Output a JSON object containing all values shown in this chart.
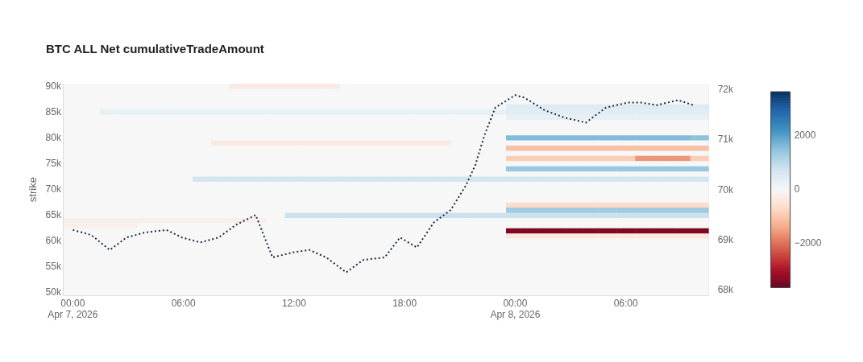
{
  "chart_data": {
    "type": "heatmap",
    "title": "BTC ALL Net cumulativeTradeAmount",
    "ylabel": "strike",
    "x": [
      "2026-04-07T00:00",
      "2026-04-07T01:00",
      "2026-04-07T02:00",
      "2026-04-07T03:00",
      "2026-04-07T04:00",
      "2026-04-07T05:00",
      "2026-04-07T06:00",
      "2026-04-07T07:00",
      "2026-04-07T08:00",
      "2026-04-07T09:00",
      "2026-04-07T10:00",
      "2026-04-07T11:00",
      "2026-04-07T12:00",
      "2026-04-07T13:00",
      "2026-04-07T14:00",
      "2026-04-07T15:00",
      "2026-04-07T16:00",
      "2026-04-07T17:00",
      "2026-04-07T18:00",
      "2026-04-07T19:00",
      "2026-04-07T20:00",
      "2026-04-07T21:00",
      "2026-04-07T22:00",
      "2026-04-07T23:00",
      "2026-04-08T00:00",
      "2026-04-08T01:00",
      "2026-04-08T02:00",
      "2026-04-08T03:00",
      "2026-04-08T04:00",
      "2026-04-08T05:00",
      "2026-04-08T06:00",
      "2026-04-08T07:00",
      "2026-04-08T08:00",
      "2026-04-08T09:00",
      "2026-04-08T10:00"
    ],
    "y": [
      90000,
      89000,
      88000,
      87000,
      86000,
      85000,
      84000,
      83000,
      82000,
      81000,
      80000,
      79000,
      78000,
      77000,
      76000,
      75000,
      74000,
      73000,
      72000,
      71000,
      70000,
      69000,
      68000,
      67000,
      66000,
      65000,
      64000,
      63000,
      62000,
      61000,
      60000,
      59000,
      58000,
      57000,
      56000,
      55000,
      54000,
      53000,
      52000,
      51000,
      50000
    ],
    "cells": [
      [
        0,
        0,
        0,
        0,
        0,
        0,
        0,
        0,
        0,
        -300,
        -300,
        -300,
        -300,
        -300,
        -300,
        0,
        0,
        0,
        0,
        0,
        0,
        0,
        0,
        0,
        0,
        0,
        0,
        0,
        0,
        0,
        0,
        0,
        0,
        0,
        0
      ],
      [
        0,
        0,
        0,
        0,
        0,
        0,
        0,
        0,
        0,
        0,
        0,
        0,
        0,
        0,
        0,
        0,
        0,
        0,
        0,
        0,
        0,
        0,
        0,
        0,
        0,
        0,
        0,
        0,
        0,
        0,
        0,
        0,
        0,
        0,
        0
      ],
      [
        0,
        0,
        0,
        0,
        0,
        0,
        0,
        0,
        0,
        0,
        0,
        0,
        0,
        0,
        0,
        0,
        0,
        0,
        0,
        0,
        0,
        0,
        0,
        0,
        0,
        0,
        0,
        0,
        0,
        0,
        0,
        0,
        0,
        0,
        0
      ],
      [
        0,
        0,
        0,
        0,
        0,
        0,
        0,
        0,
        0,
        0,
        0,
        0,
        0,
        0,
        0,
        0,
        0,
        0,
        0,
        0,
        0,
        0,
        0,
        0,
        0,
        0,
        0,
        0,
        0,
        0,
        0,
        0,
        0,
        0,
        0
      ],
      [
        0,
        0,
        0,
        0,
        0,
        0,
        0,
        0,
        0,
        0,
        0,
        0,
        0,
        0,
        0,
        0,
        0,
        0,
        0,
        0,
        0,
        0,
        0,
        0,
        500,
        500,
        500,
        500,
        500,
        500,
        500,
        500,
        500,
        500,
        500
      ],
      [
        0,
        0,
        300,
        300,
        300,
        300,
        300,
        300,
        300,
        300,
        300,
        300,
        300,
        300,
        300,
        300,
        300,
        300,
        300,
        300,
        300,
        300,
        300,
        300,
        400,
        400,
        400,
        400,
        400,
        400,
        400,
        400,
        400,
        400,
        400
      ],
      [
        0,
        0,
        0,
        0,
        0,
        0,
        0,
        0,
        0,
        0,
        0,
        0,
        0,
        0,
        0,
        0,
        0,
        0,
        0,
        0,
        0,
        0,
        0,
        0,
        300,
        300,
        300,
        300,
        300,
        300,
        300,
        300,
        300,
        300,
        300
      ],
      [
        0,
        0,
        0,
        0,
        0,
        0,
        0,
        0,
        0,
        0,
        0,
        0,
        0,
        0,
        0,
        0,
        0,
        0,
        0,
        0,
        0,
        0,
        0,
        0,
        0,
        0,
        0,
        0,
        0,
        0,
        0,
        0,
        0,
        0,
        0
      ],
      [
        0,
        0,
        0,
        0,
        0,
        0,
        0,
        0,
        0,
        0,
        0,
        0,
        0,
        0,
        0,
        0,
        0,
        0,
        0,
        0,
        0,
        0,
        0,
        0,
        0,
        0,
        0,
        0,
        0,
        0,
        0,
        0,
        0,
        0,
        0
      ],
      [
        0,
        0,
        0,
        0,
        0,
        0,
        0,
        0,
        0,
        0,
        0,
        0,
        0,
        0,
        0,
        0,
        0,
        0,
        0,
        0,
        0,
        0,
        0,
        0,
        0,
        0,
        0,
        0,
        0,
        0,
        0,
        0,
        0,
        0,
        0
      ],
      [
        0,
        0,
        0,
        0,
        0,
        0,
        0,
        0,
        0,
        0,
        0,
        0,
        0,
        0,
        0,
        0,
        0,
        0,
        0,
        0,
        0,
        0,
        0,
        0,
        1600,
        1600,
        1600,
        1600,
        1600,
        1600,
        1600,
        1600,
        1600,
        1600,
        1500
      ],
      [
        0,
        0,
        0,
        0,
        0,
        0,
        0,
        0,
        -300,
        -300,
        -300,
        -300,
        -300,
        -300,
        -300,
        -300,
        -300,
        -300,
        -300,
        -300,
        -300,
        0,
        0,
        0,
        0,
        0,
        0,
        0,
        0,
        0,
        0,
        0,
        0,
        0,
        0
      ],
      [
        0,
        0,
        0,
        0,
        0,
        0,
        0,
        0,
        0,
        0,
        0,
        0,
        0,
        0,
        0,
        0,
        0,
        0,
        0,
        0,
        0,
        0,
        0,
        0,
        -1100,
        -1100,
        -1100,
        -1100,
        -1100,
        -1100,
        -1100,
        -1100,
        -1100,
        -1100,
        -1100
      ],
      [
        0,
        0,
        0,
        0,
        0,
        0,
        0,
        0,
        0,
        0,
        0,
        0,
        0,
        0,
        0,
        0,
        0,
        0,
        0,
        0,
        0,
        0,
        0,
        0,
        0,
        0,
        0,
        0,
        0,
        0,
        0,
        0,
        0,
        0,
        0
      ],
      [
        0,
        0,
        0,
        0,
        0,
        0,
        0,
        0,
        0,
        0,
        0,
        0,
        0,
        0,
        0,
        0,
        0,
        0,
        0,
        0,
        0,
        0,
        0,
        0,
        -900,
        -900,
        -900,
        -900,
        -900,
        -900,
        -900,
        -1600,
        -1600,
        -1600,
        -900
      ],
      [
        0,
        0,
        0,
        0,
        0,
        0,
        0,
        0,
        0,
        0,
        0,
        0,
        0,
        0,
        0,
        0,
        0,
        0,
        0,
        0,
        0,
        0,
        0,
        0,
        0,
        0,
        0,
        0,
        0,
        0,
        0,
        0,
        0,
        0,
        0
      ],
      [
        0,
        0,
        0,
        0,
        0,
        0,
        0,
        0,
        0,
        0,
        0,
        0,
        0,
        0,
        0,
        0,
        0,
        0,
        0,
        0,
        0,
        0,
        0,
        0,
        1400,
        1400,
        1400,
        1400,
        1400,
        1400,
        1400,
        1400,
        1400,
        1400,
        1400
      ],
      [
        0,
        0,
        0,
        0,
        0,
        0,
        0,
        0,
        0,
        0,
        0,
        0,
        0,
        0,
        0,
        0,
        0,
        0,
        0,
        0,
        0,
        0,
        0,
        0,
        0,
        0,
        0,
        0,
        0,
        0,
        0,
        0,
        0,
        0,
        0
      ],
      [
        0,
        0,
        0,
        0,
        0,
        0,
        0,
        700,
        700,
        700,
        700,
        700,
        700,
        700,
        700,
        700,
        700,
        700,
        700,
        700,
        700,
        700,
        700,
        700,
        700,
        700,
        700,
        700,
        700,
        700,
        700,
        700,
        700,
        700,
        700
      ],
      [
        0,
        0,
        0,
        0,
        0,
        0,
        0,
        0,
        0,
        0,
        0,
        0,
        0,
        0,
        0,
        0,
        0,
        0,
        0,
        0,
        0,
        0,
        0,
        0,
        0,
        0,
        0,
        0,
        0,
        0,
        0,
        0,
        0,
        0,
        0
      ],
      [
        0,
        0,
        0,
        0,
        0,
        0,
        0,
        0,
        0,
        0,
        0,
        0,
        0,
        0,
        0,
        0,
        0,
        0,
        0,
        0,
        0,
        0,
        0,
        0,
        0,
        0,
        0,
        0,
        0,
        0,
        0,
        0,
        0,
        0,
        0
      ],
      [
        0,
        0,
        0,
        0,
        0,
        0,
        0,
        0,
        0,
        0,
        0,
        0,
        0,
        0,
        0,
        0,
        0,
        0,
        0,
        0,
        0,
        0,
        0,
        0,
        0,
        0,
        0,
        0,
        0,
        0,
        0,
        0,
        0,
        0,
        0
      ],
      [
        0,
        0,
        0,
        0,
        0,
        0,
        0,
        0,
        0,
        0,
        0,
        0,
        0,
        0,
        0,
        0,
        0,
        0,
        0,
        0,
        0,
        0,
        0,
        0,
        0,
        0,
        0,
        0,
        0,
        0,
        0,
        0,
        0,
        0,
        0
      ],
      [
        0,
        0,
        0,
        0,
        0,
        0,
        0,
        0,
        0,
        0,
        0,
        0,
        0,
        0,
        0,
        0,
        0,
        0,
        0,
        0,
        0,
        0,
        0,
        0,
        -700,
        -700,
        -700,
        -700,
        -700,
        -700,
        -700,
        -700,
        -700,
        -700,
        -700
      ],
      [
        0,
        0,
        0,
        0,
        0,
        0,
        0,
        0,
        0,
        0,
        0,
        0,
        0,
        0,
        0,
        0,
        0,
        0,
        0,
        0,
        0,
        0,
        0,
        0,
        1300,
        1300,
        1300,
        1300,
        1300,
        1300,
        1300,
        1300,
        1300,
        1300,
        1300
      ],
      [
        0,
        0,
        0,
        0,
        0,
        0,
        0,
        0,
        0,
        0,
        0,
        0,
        800,
        800,
        800,
        800,
        800,
        800,
        800,
        800,
        800,
        800,
        800,
        800,
        800,
        800,
        800,
        800,
        800,
        800,
        800,
        800,
        800,
        800,
        800
      ],
      [
        -200,
        -200,
        -200,
        -200,
        -200,
        -200,
        -200,
        -200,
        -200,
        -200,
        -200,
        0,
        0,
        0,
        0,
        0,
        0,
        0,
        0,
        0,
        0,
        0,
        0,
        0,
        0,
        0,
        0,
        0,
        0,
        0,
        0,
        0,
        0,
        0,
        0
      ],
      [
        -200,
        -200,
        -200,
        -200,
        0,
        0,
        0,
        0,
        0,
        0,
        0,
        0,
        0,
        0,
        0,
        0,
        0,
        0,
        0,
        0,
        0,
        0,
        0,
        0,
        0,
        0,
        0,
        0,
        0,
        0,
        0,
        0,
        0,
        0,
        0
      ],
      [
        0,
        0,
        0,
        0,
        0,
        0,
        0,
        0,
        0,
        0,
        0,
        0,
        0,
        0,
        0,
        0,
        0,
        0,
        0,
        0,
        0,
        0,
        0,
        0,
        -3400,
        -3400,
        -3400,
        -3400,
        -3400,
        -3400,
        -3400,
        -3400,
        -3400,
        -3400,
        -3400
      ],
      [
        0,
        0,
        0,
        0,
        0,
        0,
        0,
        0,
        0,
        0,
        0,
        0,
        0,
        0,
        0,
        0,
        0,
        0,
        0,
        0,
        0,
        0,
        0,
        0,
        -400,
        -400,
        -400,
        -400,
        -400,
        -400,
        -400,
        -400,
        -400,
        -400,
        -400
      ],
      [
        0,
        0,
        0,
        0,
        0,
        0,
        0,
        0,
        0,
        0,
        0,
        0,
        0,
        0,
        0,
        0,
        0,
        0,
        0,
        0,
        0,
        0,
        0,
        0,
        0,
        0,
        0,
        0,
        0,
        0,
        0,
        0,
        0,
        0,
        0
      ],
      [
        0,
        0,
        0,
        0,
        0,
        0,
        0,
        0,
        0,
        0,
        0,
        0,
        0,
        0,
        0,
        0,
        0,
        0,
        0,
        0,
        0,
        0,
        0,
        0,
        0,
        0,
        0,
        0,
        0,
        0,
        0,
        0,
        0,
        0,
        0
      ],
      [
        0,
        0,
        0,
        0,
        0,
        0,
        0,
        0,
        0,
        0,
        0,
        0,
        0,
        0,
        0,
        0,
        0,
        0,
        0,
        0,
        0,
        0,
        0,
        0,
        0,
        0,
        0,
        0,
        0,
        0,
        0,
        0,
        0,
        0,
        0
      ],
      [
        0,
        0,
        0,
        0,
        0,
        0,
        0,
        0,
        0,
        0,
        0,
        0,
        0,
        0,
        0,
        0,
        0,
        0,
        0,
        0,
        0,
        0,
        0,
        0,
        0,
        0,
        0,
        0,
        0,
        0,
        0,
        0,
        0,
        0,
        0
      ],
      [
        0,
        0,
        0,
        0,
        0,
        0,
        0,
        0,
        0,
        0,
        0,
        0,
        0,
        0,
        0,
        0,
        0,
        0,
        0,
        0,
        0,
        0,
        0,
        0,
        0,
        0,
        0,
        0,
        0,
        0,
        0,
        0,
        0,
        0,
        0
      ],
      [
        0,
        0,
        0,
        0,
        0,
        0,
        0,
        0,
        0,
        0,
        0,
        0,
        0,
        0,
        0,
        0,
        0,
        0,
        0,
        0,
        0,
        0,
        0,
        0,
        0,
        0,
        0,
        0,
        0,
        0,
        0,
        0,
        0,
        0,
        0
      ],
      [
        0,
        0,
        0,
        0,
        0,
        0,
        0,
        0,
        0,
        0,
        0,
        0,
        0,
        0,
        0,
        0,
        0,
        0,
        0,
        0,
        0,
        0,
        0,
        0,
        0,
        0,
        0,
        0,
        0,
        0,
        0,
        0,
        0,
        0,
        0
      ],
      [
        0,
        0,
        0,
        0,
        0,
        0,
        0,
        0,
        0,
        0,
        0,
        0,
        0,
        0,
        0,
        0,
        0,
        0,
        0,
        0,
        0,
        0,
        0,
        0,
        0,
        0,
        0,
        0,
        0,
        0,
        0,
        0,
        0,
        0,
        0
      ],
      [
        0,
        0,
        0,
        0,
        0,
        0,
        0,
        0,
        0,
        0,
        0,
        0,
        0,
        0,
        0,
        0,
        0,
        0,
        0,
        0,
        0,
        0,
        0,
        0,
        0,
        0,
        0,
        0,
        0,
        0,
        0,
        0,
        0,
        0,
        0
      ],
      [
        0,
        0,
        0,
        0,
        0,
        0,
        0,
        0,
        0,
        0,
        0,
        0,
        0,
        0,
        0,
        0,
        0,
        0,
        0,
        0,
        0,
        0,
        0,
        0,
        0,
        0,
        0,
        0,
        0,
        0,
        0,
        0,
        0,
        0,
        0
      ],
      [
        0,
        0,
        0,
        0,
        0,
        0,
        0,
        0,
        0,
        0,
        0,
        0,
        0,
        0,
        0,
        0,
        0,
        0,
        0,
        0,
        0,
        0,
        0,
        0,
        0,
        0,
        0,
        0,
        0,
        0,
        0,
        0,
        0,
        0,
        0
      ]
    ],
    "clim": [
      -3650,
      3650
    ],
    "cticks": [
      {
        "value": -2000,
        "label": "−2000"
      },
      0,
      2000
    ],
    "series": [
      {
        "type": "line",
        "axis": "y2",
        "color": "#1b2a47",
        "x": [
          "2026-04-07T00:00",
          "2026-04-07T01:00",
          "2026-04-07T02:00",
          "2026-04-07T02:55",
          "2026-04-07T03:55",
          "2026-04-07T05:05",
          "2026-04-07T05:55",
          "2026-04-07T06:55",
          "2026-04-07T07:55",
          "2026-04-07T08:50",
          "2026-04-07T09:55",
          "2026-04-07T10:50",
          "2026-04-07T11:55",
          "2026-04-07T12:50",
          "2026-04-07T13:45",
          "2026-04-07T14:50",
          "2026-04-07T15:45",
          "2026-04-07T16:55",
          "2026-04-07T17:45",
          "2026-04-07T18:40",
          "2026-04-07T19:35",
          "2026-04-07T20:30",
          "2026-04-07T21:20",
          "2026-04-07T21:50",
          "2026-04-07T22:20",
          "2026-04-07T22:55",
          "2026-04-08T00:00",
          "2026-04-08T00:30",
          "2026-04-08T01:35",
          "2026-04-08T02:40",
          "2026-04-08T03:50",
          "2026-04-08T04:55",
          "2026-04-08T06:05",
          "2026-04-08T06:50",
          "2026-04-08T07:40",
          "2026-04-08T08:50",
          "2026-04-08T09:40"
        ],
        "values": [
          69200,
          69100,
          68800,
          69050,
          69150,
          69200,
          69050,
          68950,
          69050,
          69300,
          69500,
          68650,
          68750,
          68800,
          68650,
          68350,
          68600,
          68650,
          69050,
          68850,
          69350,
          69600,
          70100,
          70500,
          71100,
          71650,
          71900,
          71850,
          71600,
          71450,
          71350,
          71650,
          71750,
          71750,
          71700,
          71800,
          71700
        ]
      }
    ],
    "line_style": "dotted",
    "legend": false,
    "xlim": [
      "2026-04-06T23:30",
      "2026-04-08T10:30"
    ],
    "xticks": [
      {
        "value": "2026-04-07T00:00",
        "label": "00:00\nApr 7, 2026"
      },
      {
        "value": "2026-04-07T06:00",
        "label": "06:00"
      },
      {
        "value": "2026-04-07T12:00",
        "label": "12:00"
      },
      {
        "value": "2026-04-07T18:00",
        "label": "18:00"
      },
      {
        "value": "2026-04-08T00:00",
        "label": "00:00\nApr 8, 2026"
      },
      {
        "value": "2026-04-08T06:00",
        "label": "06:00"
      }
    ],
    "ylim": [
      49500,
      90500
    ],
    "yticks": [
      {
        "value": 50000,
        "label": "50k"
      },
      {
        "value": 55000,
        "label": "55k"
      },
      {
        "value": 60000,
        "label": "60k"
      },
      {
        "value": 65000,
        "label": "65k"
      },
      {
        "value": 70000,
        "label": "70k"
      },
      {
        "value": 75000,
        "label": "75k"
      },
      {
        "value": 80000,
        "label": "80k"
      },
      {
        "value": 85000,
        "label": "85k"
      },
      {
        "value": 90000,
        "label": "90k"
      }
    ],
    "y2lim": [
      67890,
      72130
    ],
    "y2ticks": [
      {
        "value": 68000,
        "label": "68k"
      },
      {
        "value": 69000,
        "label": "69k"
      },
      {
        "value": 70000,
        "label": "70k"
      },
      {
        "value": 71000,
        "label": "71k"
      },
      {
        "value": 72000,
        "label": "72k"
      }
    ]
  }
}
